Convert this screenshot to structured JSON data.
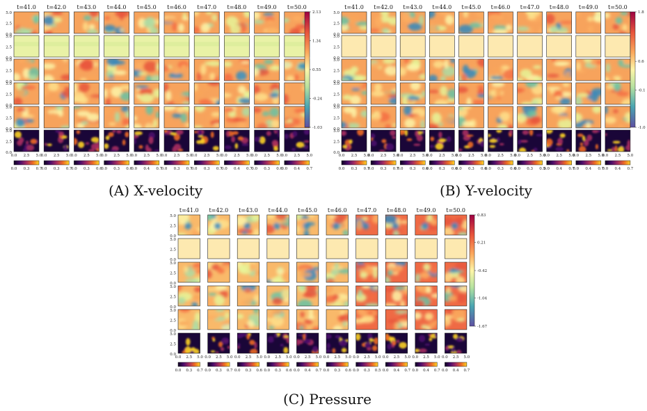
{
  "figures": [
    {
      "key": "x",
      "label": "(A)",
      "name": "X-velocity",
      "times": [
        "t=41.0",
        "t=42.0",
        "t=43.0",
        "t=44.0",
        "t=45.0",
        "t=46.0",
        "t=47.0",
        "t=48.0",
        "t=49.0",
        "t=50.0"
      ],
      "colorbar_ticks": [
        "2.13",
        "1.34",
        "0.55",
        "-0.24",
        "-1.03"
      ],
      "error_ticks": [
        [
          "0.0",
          "0.3",
          "0.7"
        ],
        [
          "0.0",
          "0.3",
          "0.7"
        ],
        [
          "0.0",
          "0.3",
          "0.6"
        ],
        [
          "0.0",
          "0.3",
          "0.6"
        ],
        [
          "0.0",
          "0.4",
          "0.7"
        ],
        [
          "0.0",
          "0.3",
          "0.7"
        ],
        [
          "0.0",
          "0.3",
          "0.7"
        ],
        [
          "0.0",
          "0.4",
          "0.7"
        ],
        [
          "0.0",
          "0.3",
          "0.6"
        ],
        [
          "0.0",
          "0.4",
          "0.7"
        ]
      ]
    },
    {
      "key": "y",
      "label": "(B)",
      "name": "Y-velocity",
      "times": [
        "t=41.0",
        "t=42.0",
        "t=43.0",
        "t=44.0",
        "t=45.0",
        "t=46.0",
        "t=47.0",
        "t=48.0",
        "t=49.0",
        "t=50.0"
      ],
      "colorbar_ticks": [
        "1.8",
        "0.6",
        "-0.1",
        "-1.0"
      ],
      "error_ticks": [
        [
          "0.0",
          "0.3",
          "0.7"
        ],
        [
          "0.0",
          "0.3",
          "0.7"
        ],
        [
          "0.0",
          "0.3",
          "0.6"
        ],
        [
          "0.0",
          "0.3",
          "0.6"
        ],
        [
          "0.0",
          "0.3",
          "0.6"
        ],
        [
          "0.0",
          "0.3",
          "0.6"
        ],
        [
          "0.0",
          "0.3",
          "0.5"
        ],
        [
          "0.0",
          "0.4",
          "0.7"
        ],
        [
          "0.0",
          "0.4",
          "0.7"
        ],
        [
          "0.0",
          "0.4",
          "0.7"
        ]
      ]
    },
    {
      "key": "p",
      "label": "(C)",
      "name": "Pressure",
      "times": [
        "t=41.0",
        "t=42.0",
        "t=43.0",
        "t=44.0",
        "t=45.0",
        "t=46.0",
        "t=47.0",
        "t=48.0",
        "t=49.0",
        "t=50.0"
      ],
      "colorbar_ticks": [
        "0.83",
        "0.21",
        "-0.42",
        "-1.04",
        "-1.67"
      ],
      "error_ticks": [
        [
          "0.0",
          "0.3",
          "0.7"
        ],
        [
          "0.0",
          "0.3",
          "0.7"
        ],
        [
          "0.0",
          "0.3",
          "0.6"
        ],
        [
          "0.0",
          "0.3",
          "0.6"
        ],
        [
          "0.0",
          "0.4",
          "0.7"
        ],
        [
          "0.0",
          "0.3",
          "0.6"
        ],
        [
          "0.0",
          "0.3",
          "0.5"
        ],
        [
          "0.0",
          "0.4",
          "0.7"
        ],
        [
          "0.0",
          "0.4",
          "0.7"
        ],
        [
          "0.0",
          "0.4",
          "0.7"
        ]
      ]
    }
  ],
  "axis_ticks": {
    "y": [
      "5.0",
      "2.5",
      "0.0"
    ],
    "x": [
      "0.0",
      "2.5",
      "5.0"
    ]
  },
  "colors": {
    "field_low": "#3b4cc0",
    "field_high": "#b2182b",
    "error_low": "#0d0221",
    "error_high": "#fcd225"
  }
}
